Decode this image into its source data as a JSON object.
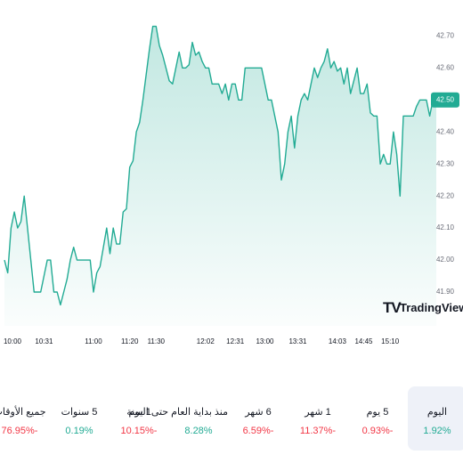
{
  "chart_data": {
    "type": "area",
    "ylim": [
      41.85,
      42.74
    ],
    "y_ticks": [
      "42.70",
      "42.60",
      "42.40",
      "42.30",
      "42.20",
      "42.10",
      "42.00",
      "41.90"
    ],
    "y_tick_values": [
      42.7,
      42.6,
      42.4,
      42.3,
      42.2,
      42.1,
      42.0,
      41.9
    ],
    "last_price_label": "42.50",
    "last_price": 42.5,
    "x_ticks": [
      "10:00",
      "10:31",
      "11:00",
      "11:20",
      "11:30",
      "12:02",
      "12:31",
      "13:00",
      "13:31",
      "14:03",
      "14:45",
      "15:10"
    ],
    "x_tick_index": [
      0,
      12,
      27,
      38,
      46,
      61,
      70,
      79,
      89,
      101,
      109,
      117
    ],
    "line_color": "#22ab94",
    "fill_color": "#22ab94",
    "values": [
      42.0,
      41.96,
      42.1,
      42.15,
      42.1,
      42.12,
      42.2,
      42.1,
      42.0,
      41.9,
      41.9,
      41.9,
      41.95,
      42.0,
      42.0,
      41.9,
      41.9,
      41.86,
      41.9,
      41.94,
      42.0,
      42.04,
      42.0,
      42.0,
      42.0,
      42.0,
      42.0,
      41.9,
      41.96,
      41.98,
      42.04,
      42.1,
      42.02,
      42.1,
      42.05,
      42.05,
      42.15,
      42.16,
      42.29,
      42.31,
      42.4,
      42.43,
      42.5,
      42.58,
      42.66,
      42.73,
      42.73,
      42.67,
      42.64,
      42.6,
      42.56,
      42.55,
      42.6,
      42.65,
      42.6,
      42.6,
      42.61,
      42.68,
      42.64,
      42.65,
      42.62,
      42.6,
      42.6,
      42.55,
      42.55,
      42.55,
      42.52,
      42.55,
      42.5,
      42.55,
      42.55,
      42.5,
      42.5,
      42.6,
      42.6,
      42.6,
      42.6,
      42.6,
      42.6,
      42.55,
      42.5,
      42.5,
      42.45,
      42.4,
      42.25,
      42.3,
      42.4,
      42.45,
      42.35,
      42.45,
      42.5,
      42.52,
      42.5,
      42.55,
      42.6,
      42.57,
      42.6,
      42.62,
      42.66,
      42.6,
      42.62,
      42.59,
      42.6,
      42.55,
      42.6,
      42.52,
      42.56,
      42.6,
      42.52,
      42.52,
      42.55,
      42.46,
      42.45,
      42.45,
      42.3,
      42.33,
      42.3,
      42.3,
      42.4,
      42.33,
      42.2,
      42.45,
      42.45,
      42.45,
      42.45,
      42.48,
      42.5,
      42.5,
      42.5,
      42.45,
      42.5,
      42.5
    ]
  },
  "watermark": {
    "text": "TradingView",
    "logo": "TV"
  },
  "periods": [
    {
      "label": "اليوم",
      "value": "1.92%",
      "sign": "pos",
      "active": true
    },
    {
      "label": "5 يوم",
      "value": "0.93%-",
      "sign": "neg",
      "active": false
    },
    {
      "label": "1 شهر",
      "value": "11.37%-",
      "sign": "neg",
      "active": false
    },
    {
      "label": "6 شهر",
      "value": "6.59%-",
      "sign": "neg",
      "active": false
    },
    {
      "label": "منذ بداية العام حتى اليوم",
      "value": "8.28%",
      "sign": "pos",
      "active": false
    },
    {
      "label": "1 سنة",
      "value": "10.15%-",
      "sign": "neg",
      "active": false
    },
    {
      "label": "5 سنوات",
      "value": "0.19%",
      "sign": "pos",
      "active": false
    },
    {
      "label": "جميع الأوقات",
      "value": "76.95%-",
      "sign": "neg",
      "active": false
    }
  ]
}
